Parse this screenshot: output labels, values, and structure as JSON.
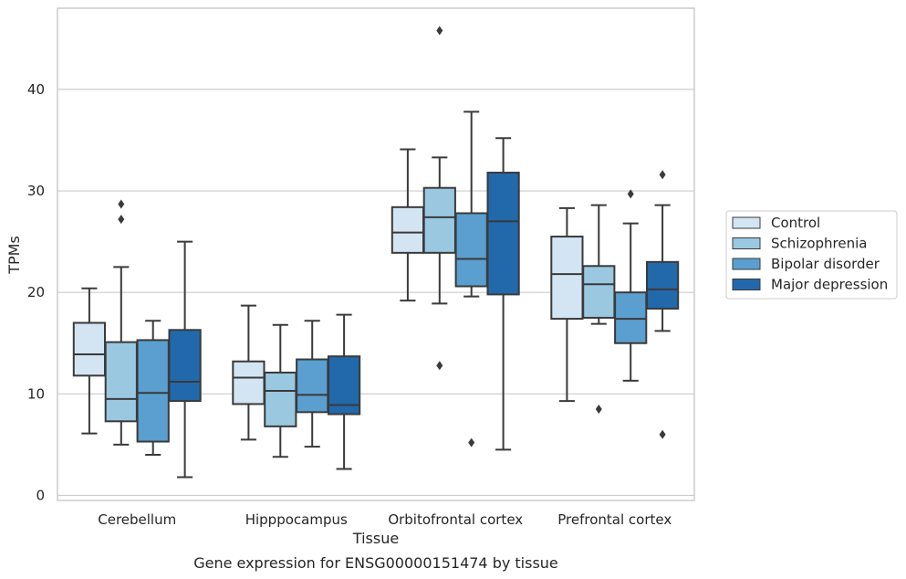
{
  "chart_data": {
    "type": "box",
    "caption": "Gene expression for ENSG00000151474 by tissue",
    "xlabel": "Tissue",
    "ylabel": "TPMs",
    "ylim": [
      -0.5,
      48
    ],
    "yticks": [
      0,
      10,
      20,
      30,
      40
    ],
    "grid": true,
    "legend_position": "right",
    "categories": [
      "Cerebellum",
      "Hipppocampus",
      "Orbitofrontal cortex",
      "Prefrontal cortex"
    ],
    "series": [
      {
        "name": "Control",
        "color": "#d3e4f3",
        "boxes": [
          {
            "whislo": 6.1,
            "q1": 11.8,
            "med": 13.9,
            "q3": 17.0,
            "whishi": 20.4,
            "fliers": []
          },
          {
            "whislo": 5.5,
            "q1": 9.0,
            "med": 11.6,
            "q3": 13.2,
            "whishi": 18.7,
            "fliers": []
          },
          {
            "whislo": 19.2,
            "q1": 23.9,
            "med": 25.9,
            "q3": 28.4,
            "whishi": 34.1,
            "fliers": []
          },
          {
            "whislo": 9.3,
            "q1": 17.4,
            "med": 21.8,
            "q3": 25.5,
            "whishi": 28.3,
            "fliers": []
          }
        ]
      },
      {
        "name": "Schizophrenia",
        "color": "#9ac8e0",
        "boxes": [
          {
            "whislo": 5.0,
            "q1": 7.3,
            "med": 9.5,
            "q3": 15.1,
            "whishi": 22.5,
            "fliers": [
              27.2,
              28.7
            ]
          },
          {
            "whislo": 3.8,
            "q1": 6.8,
            "med": 10.3,
            "q3": 12.1,
            "whishi": 16.8,
            "fliers": []
          },
          {
            "whislo": 18.9,
            "q1": 23.9,
            "med": 27.4,
            "q3": 30.3,
            "whishi": 33.3,
            "fliers": [
              12.8,
              45.8
            ]
          },
          {
            "whislo": 16.9,
            "q1": 17.5,
            "med": 20.8,
            "q3": 22.6,
            "whishi": 28.6,
            "fliers": [
              8.5
            ]
          }
        ]
      },
      {
        "name": "Bipolar disorder",
        "color": "#5a9fcf",
        "boxes": [
          {
            "whislo": 4.0,
            "q1": 5.3,
            "med": 10.1,
            "q3": 15.3,
            "whishi": 17.2,
            "fliers": []
          },
          {
            "whislo": 4.8,
            "q1": 8.2,
            "med": 9.9,
            "q3": 13.4,
            "whishi": 17.2,
            "fliers": []
          },
          {
            "whislo": 19.6,
            "q1": 20.6,
            "med": 23.3,
            "q3": 27.8,
            "whishi": 37.8,
            "fliers": [
              5.2
            ]
          },
          {
            "whislo": 11.3,
            "q1": 15.0,
            "med": 17.4,
            "q3": 20.0,
            "whishi": 26.8,
            "fliers": [
              29.7
            ]
          }
        ]
      },
      {
        "name": "Major depression",
        "color": "#2269ac",
        "boxes": [
          {
            "whislo": 1.8,
            "q1": 9.3,
            "med": 11.2,
            "q3": 16.3,
            "whishi": 25.0,
            "fliers": []
          },
          {
            "whislo": 2.6,
            "q1": 8.0,
            "med": 8.9,
            "q3": 13.7,
            "whishi": 17.8,
            "fliers": []
          },
          {
            "whislo": 4.5,
            "q1": 19.8,
            "med": 27.0,
            "q3": 31.8,
            "whishi": 35.2,
            "fliers": []
          },
          {
            "whislo": 16.2,
            "q1": 18.4,
            "med": 20.3,
            "q3": 23.0,
            "whishi": 28.6,
            "fliers": [
              6.0,
              31.6
            ]
          }
        ]
      }
    ]
  },
  "style": {
    "line_color": "#3a3a3a",
    "grid_color": "#cccccc",
    "frame_color": "#cccccc",
    "background": "#ffffff"
  }
}
